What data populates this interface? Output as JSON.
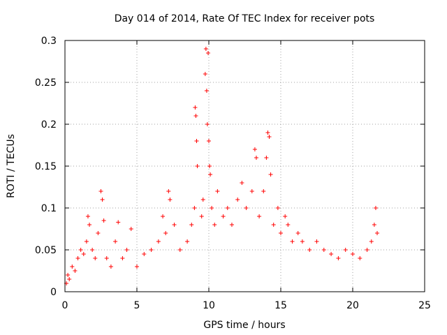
{
  "chart_data": {
    "type": "scatter",
    "title": "Day 014 of 2014, Rate Of TEC Index for receiver pots",
    "xlabel": "GPS time / hours",
    "ylabel": "ROTI / TECUs",
    "xlim": [
      0,
      25
    ],
    "ylim": [
      0,
      0.3
    ],
    "xticks": [
      0,
      5,
      10,
      15,
      20,
      25
    ],
    "yticks": [
      0,
      0.05,
      0.1,
      0.15,
      0.2,
      0.25,
      0.3
    ],
    "xtick_labels": [
      "0",
      "5",
      "10",
      "15",
      "20",
      "25"
    ],
    "ytick_labels": [
      "0",
      "0.05",
      "0.1",
      "0.15",
      "0.2",
      "0.25",
      "0.3"
    ],
    "grid": true,
    "marker": "+",
    "color": "#ff0000",
    "series": [
      {
        "name": "pots",
        "points": [
          [
            0.1,
            0.01
          ],
          [
            0.2,
            0.02
          ],
          [
            0.3,
            0.015
          ],
          [
            0.5,
            0.03
          ],
          [
            0.7,
            0.025
          ],
          [
            0.9,
            0.04
          ],
          [
            1.1,
            0.05
          ],
          [
            1.3,
            0.045
          ],
          [
            1.5,
            0.06
          ],
          [
            1.6,
            0.09
          ],
          [
            1.7,
            0.08
          ],
          [
            1.9,
            0.05
          ],
          [
            2.1,
            0.04
          ],
          [
            2.3,
            0.07
          ],
          [
            2.5,
            0.12
          ],
          [
            2.6,
            0.11
          ],
          [
            2.7,
            0.085
          ],
          [
            2.9,
            0.04
          ],
          [
            3.2,
            0.03
          ],
          [
            3.5,
            0.06
          ],
          [
            3.7,
            0.083
          ],
          [
            4.0,
            0.04
          ],
          [
            4.3,
            0.05
          ],
          [
            4.6,
            0.075
          ],
          [
            5.0,
            0.03
          ],
          [
            5.5,
            0.045
          ],
          [
            6.0,
            0.05
          ],
          [
            6.5,
            0.06
          ],
          [
            6.8,
            0.09
          ],
          [
            7.0,
            0.07
          ],
          [
            7.2,
            0.12
          ],
          [
            7.3,
            0.11
          ],
          [
            7.6,
            0.08
          ],
          [
            8.0,
            0.05
          ],
          [
            8.5,
            0.06
          ],
          [
            8.8,
            0.08
          ],
          [
            9.0,
            0.1
          ],
          [
            9.05,
            0.22
          ],
          [
            9.1,
            0.21
          ],
          [
            9.15,
            0.18
          ],
          [
            9.2,
            0.15
          ],
          [
            9.5,
            0.09
          ],
          [
            9.6,
            0.11
          ],
          [
            9.75,
            0.26
          ],
          [
            9.8,
            0.29
          ],
          [
            9.85,
            0.24
          ],
          [
            9.9,
            0.2
          ],
          [
            9.95,
            0.285
          ],
          [
            10.0,
            0.18
          ],
          [
            10.05,
            0.15
          ],
          [
            10.1,
            0.14
          ],
          [
            10.2,
            0.1
          ],
          [
            10.4,
            0.08
          ],
          [
            10.6,
            0.12
          ],
          [
            11.0,
            0.09
          ],
          [
            11.3,
            0.1
          ],
          [
            11.6,
            0.08
          ],
          [
            12.0,
            0.11
          ],
          [
            12.3,
            0.13
          ],
          [
            12.6,
            0.1
          ],
          [
            13.0,
            0.12
          ],
          [
            13.2,
            0.17
          ],
          [
            13.3,
            0.16
          ],
          [
            13.5,
            0.09
          ],
          [
            13.8,
            0.12
          ],
          [
            14.0,
            0.16
          ],
          [
            14.1,
            0.19
          ],
          [
            14.2,
            0.185
          ],
          [
            14.3,
            0.14
          ],
          [
            14.5,
            0.08
          ],
          [
            14.8,
            0.1
          ],
          [
            15.0,
            0.07
          ],
          [
            15.3,
            0.09
          ],
          [
            15.5,
            0.08
          ],
          [
            15.8,
            0.06
          ],
          [
            16.2,
            0.07
          ],
          [
            16.5,
            0.06
          ],
          [
            17.0,
            0.05
          ],
          [
            17.5,
            0.06
          ],
          [
            18.0,
            0.05
          ],
          [
            18.5,
            0.045
          ],
          [
            19.0,
            0.04
          ],
          [
            19.5,
            0.05
          ],
          [
            20.0,
            0.045
          ],
          [
            20.5,
            0.04
          ],
          [
            21.0,
            0.05
          ],
          [
            21.3,
            0.06
          ],
          [
            21.5,
            0.08
          ],
          [
            21.6,
            0.1
          ],
          [
            21.7,
            0.07
          ]
        ]
      }
    ]
  }
}
